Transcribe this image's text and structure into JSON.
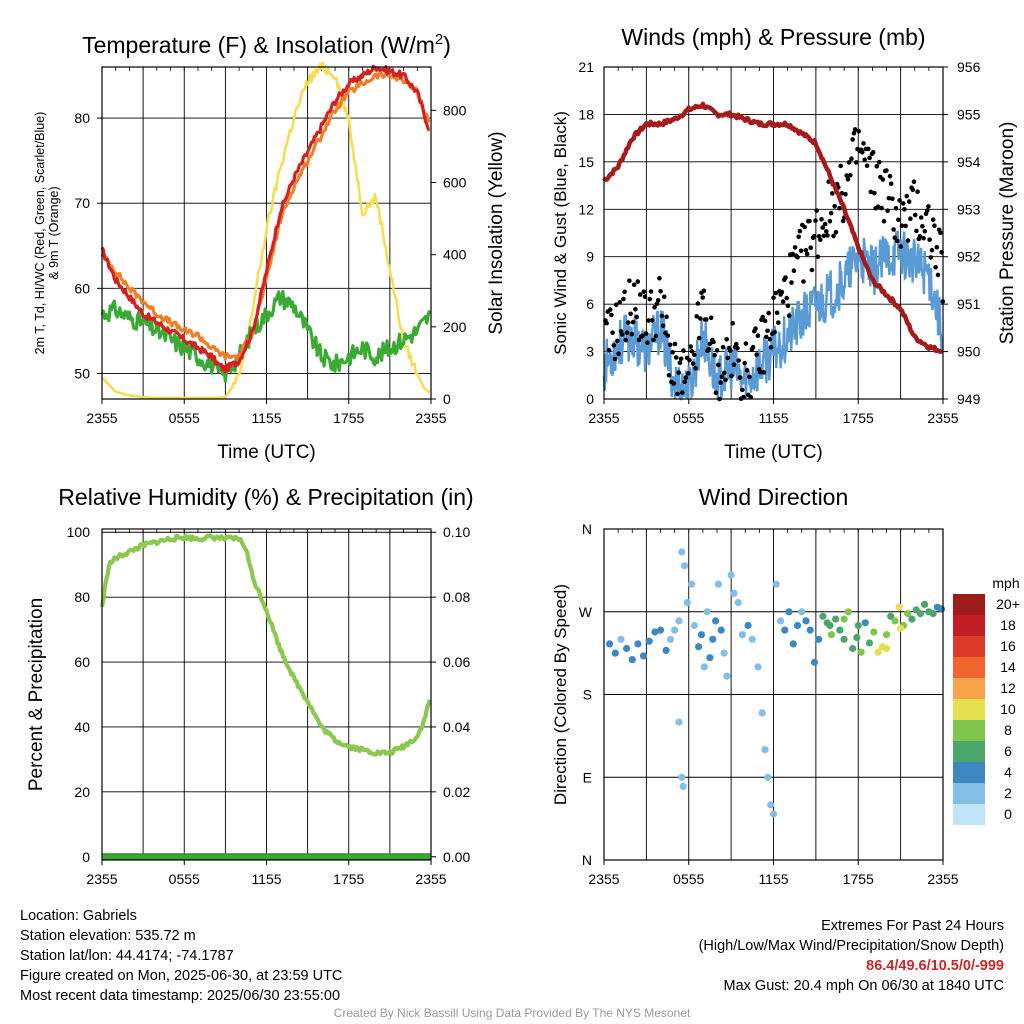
{
  "chart_data": [
    {
      "type": "line",
      "title": "Temperature (F) & Insolation (W/m²)",
      "xlabel": "Time (UTC)",
      "ylabel": "2m T, Td, HI/WC (Red, Green, Scarlet/Blue) & 9m T (Orange)",
      "y2label": "Solar Insolation (Yellow)",
      "x_ticks": [
        "2355",
        "0555",
        "1155",
        "1755",
        "2355"
      ],
      "xlim": [
        0,
        24
      ],
      "ylim": [
        47,
        86
      ],
      "y_ticks": [
        50,
        60,
        70,
        80
      ],
      "y2lim": [
        0,
        920
      ],
      "y2_ticks": [
        0,
        200,
        400,
        600,
        800
      ],
      "grid": true,
      "series": [
        {
          "axis": "left",
          "color": "#d42020",
          "x": [
            0,
            1,
            2,
            3,
            4,
            5,
            6,
            7,
            8,
            8.5,
            9,
            9.5,
            10,
            11,
            12,
            13,
            14,
            15,
            16,
            17,
            18,
            19,
            20,
            21,
            22,
            23,
            24
          ],
          "values": [
            64.5,
            61,
            59,
            57,
            56,
            55,
            54,
            53,
            52,
            51,
            50.5,
            51,
            51.5,
            55,
            62,
            69,
            73,
            76,
            79,
            82,
            84,
            85,
            86,
            85.5,
            85,
            83,
            78
          ]
        },
        {
          "axis": "left",
          "color": "#f07f2a",
          "x": [
            0,
            1,
            2,
            3,
            4,
            5,
            6,
            7,
            8,
            8.5,
            9,
            9.5,
            10,
            11,
            12,
            13,
            14,
            15,
            16,
            17,
            18,
            19,
            20,
            21,
            22,
            23,
            24
          ],
          "values": [
            64,
            62,
            60,
            58.5,
            57,
            56,
            55,
            54.5,
            53,
            52.5,
            52,
            52,
            52,
            55,
            61,
            68,
            72,
            75,
            78,
            81,
            83,
            84,
            85,
            85,
            84.5,
            83,
            79
          ]
        },
        {
          "axis": "left",
          "color": "#3aaa35",
          "x": [
            0,
            1,
            2,
            3,
            4,
            5,
            6,
            7,
            8,
            8.5,
            9,
            9.5,
            10,
            11,
            12,
            13,
            14,
            15,
            16,
            17,
            18,
            19,
            20,
            21,
            22,
            23,
            24
          ],
          "values": [
            57,
            57.5,
            56.5,
            56,
            55,
            54,
            53,
            52,
            51,
            50,
            50,
            51,
            52,
            55,
            57,
            59,
            58,
            55,
            52,
            51,
            52,
            53,
            52,
            53,
            54,
            55,
            57
          ]
        },
        {
          "axis": "right",
          "color": "#f5dc50",
          "x": [
            0,
            1,
            2,
            3,
            4,
            5,
            6,
            7,
            8,
            9,
            10,
            11,
            12,
            13,
            14,
            15,
            16,
            17,
            18,
            19,
            20,
            21,
            22,
            23,
            23.5,
            24
          ],
          "values": [
            60,
            20,
            10,
            5,
            3,
            3,
            3,
            3,
            3,
            5,
            60,
            250,
            470,
            640,
            780,
            880,
            920,
            900,
            770,
            520,
            560,
            360,
            160,
            70,
            30,
            15
          ]
        }
      ]
    },
    {
      "type": "scatter",
      "title": "Winds (mph) & Pressure (mb)",
      "xlabel": "Time (UTC)",
      "ylabel": "Sonic Wind & Gust (Blue, Black)",
      "y2label": "Station Pressure (Maroon)",
      "x_ticks": [
        "2355",
        "0555",
        "1155",
        "1755",
        "2355"
      ],
      "xlim": [
        0,
        24
      ],
      "ylim": [
        0,
        21
      ],
      "y_ticks": [
        0,
        3,
        6,
        9,
        12,
        15,
        18,
        21
      ],
      "y2lim": [
        949,
        956
      ],
      "y2_ticks": [
        949,
        950,
        951,
        952,
        953,
        954,
        955,
        956
      ],
      "grid": true,
      "series": [
        {
          "name": "wind",
          "color": "#5a9bd5",
          "x": [
            0,
            1,
            2,
            3,
            4,
            5,
            6,
            7,
            8,
            9,
            10,
            11,
            12,
            13,
            14,
            15,
            16,
            17,
            18,
            19,
            20,
            21,
            22,
            23,
            24
          ],
          "values": [
            2,
            3.5,
            4,
            3,
            4.5,
            1,
            0.5,
            4,
            1,
            2,
            1,
            2,
            3,
            4,
            5,
            6,
            6.5,
            7.5,
            9,
            8,
            9,
            9.5,
            8.5,
            8,
            4
          ]
        },
        {
          "name": "gust",
          "color": "#000000",
          "x": [
            0,
            1,
            2,
            3,
            4,
            5,
            6,
            7,
            8,
            9,
            10,
            11,
            12,
            13,
            14,
            15,
            16,
            17,
            18,
            19,
            20,
            21,
            22,
            23,
            24
          ],
          "values": [
            3.5,
            4.5,
            6,
            5,
            6,
            1.5,
            1,
            6,
            1.5,
            3,
            1.5,
            3,
            5,
            7,
            9,
            10.5,
            12,
            13,
            16,
            14,
            13,
            11,
            12,
            11,
            8
          ]
        },
        {
          "name": "pressure",
          "axis": "right",
          "color": "#a51a1a",
          "x": [
            0,
            1,
            2,
            3,
            4,
            5,
            6,
            7,
            8,
            9,
            10,
            11,
            12,
            13,
            14,
            15,
            16,
            17,
            18,
            19,
            20,
            21,
            22,
            23,
            24
          ],
          "values": [
            953.6,
            953.9,
            954.5,
            954.8,
            954.8,
            954.9,
            955.1,
            955.2,
            955.0,
            955.0,
            954.9,
            954.8,
            954.8,
            954.8,
            954.6,
            954.4,
            953.7,
            953.0,
            952.2,
            951.5,
            951.2,
            950.9,
            950.3,
            950.1,
            950.0
          ]
        }
      ]
    },
    {
      "type": "line",
      "title": "Relative Humidity (%) & Precipitation (in)",
      "xlabel": "",
      "ylabel": "Percent & Precipitation",
      "x_ticks": [
        "2355",
        "0555",
        "1155",
        "1755",
        "2355"
      ],
      "xlim": [
        0,
        24
      ],
      "ylim": [
        -1,
        101
      ],
      "y_ticks": [
        0,
        20,
        40,
        60,
        80,
        100
      ],
      "y2lim": [
        -0.001,
        0.101
      ],
      "y2_ticks": [
        "0.00",
        "0.02",
        "0.04",
        "0.06",
        "0.08",
        "0.10"
      ],
      "grid": true,
      "series": [
        {
          "color": "#8cc850",
          "x": [
            0,
            0.5,
            1,
            2,
            3,
            4,
            5,
            6,
            7,
            8,
            9,
            10,
            10.5,
            11,
            12,
            13,
            14,
            15,
            15.5,
            16,
            17,
            18,
            19,
            20,
            21,
            22,
            23,
            23.5,
            24
          ],
          "values": [
            77,
            90,
            92,
            94,
            96,
            97,
            98,
            98.5,
            98,
            98.5,
            98,
            98,
            95,
            86,
            76,
            64,
            55,
            48,
            44,
            40,
            36,
            34,
            33,
            32,
            32,
            34,
            37,
            42,
            50
          ]
        },
        {
          "color": "#3aaa35",
          "axis": "right",
          "x": [
            0,
            24
          ],
          "values": [
            0,
            0
          ]
        }
      ]
    },
    {
      "type": "scatter",
      "title": "Wind Direction",
      "xlabel": "",
      "ylabel": "Direction (Colored By Speed)",
      "x_ticks": [
        "2355",
        "0555",
        "1155",
        "1755",
        "2355"
      ],
      "xlim": [
        0,
        24
      ],
      "y_ticks": [
        "N",
        "E",
        "S",
        "W",
        "N"
      ],
      "ylim": [
        0,
        360
      ],
      "grid": true,
      "colorbar": {
        "title": "mph",
        "labels": [
          "20+",
          "18",
          "16",
          "14",
          "12",
          "10",
          "8",
          "6",
          "4",
          "2",
          "0"
        ],
        "colors": [
          "#9e1c1c",
          "#c01e24",
          "#de3a2b",
          "#f0642e",
          "#f8a24c",
          "#e6e050",
          "#7dc54b",
          "#4ca66a",
          "#3d88c0",
          "#84bde6",
          "#bfe3f8"
        ]
      },
      "points": [
        [
          0.4,
          235,
          3
        ],
        [
          0.8,
          225,
          3
        ],
        [
          1.2,
          240,
          2
        ],
        [
          1.6,
          230,
          4
        ],
        [
          2.0,
          218,
          4
        ],
        [
          2.4,
          235,
          3
        ],
        [
          2.8,
          222,
          4
        ],
        [
          3.2,
          238,
          4
        ],
        [
          3.6,
          248,
          3
        ],
        [
          4.0,
          250,
          3
        ],
        [
          4.4,
          228,
          4
        ],
        [
          4.7,
          240,
          2
        ],
        [
          5.0,
          250,
          1
        ],
        [
          5.3,
          260,
          2
        ],
        [
          5.5,
          335,
          1
        ],
        [
          5.7,
          320,
          2
        ],
        [
          5.9,
          280,
          1
        ],
        [
          5.3,
          150,
          1
        ],
        [
          5.5,
          90,
          1
        ],
        [
          5.6,
          80,
          1
        ],
        [
          6.2,
          300,
          1
        ],
        [
          6.4,
          255,
          2
        ],
        [
          6.7,
          232,
          3
        ],
        [
          6.9,
          245,
          3
        ],
        [
          7.1,
          210,
          2
        ],
        [
          7.3,
          270,
          2
        ],
        [
          7.5,
          220,
          3
        ],
        [
          7.7,
          240,
          3
        ],
        [
          7.9,
          260,
          3
        ],
        [
          8.1,
          300,
          2
        ],
        [
          8.3,
          250,
          3
        ],
        [
          8.5,
          225,
          2
        ],
        [
          8.7,
          200,
          2
        ],
        [
          9.0,
          310,
          1
        ],
        [
          9.2,
          290,
          2
        ],
        [
          9.5,
          280,
          1
        ],
        [
          9.8,
          245,
          2
        ],
        [
          10.2,
          255,
          3
        ],
        [
          10.5,
          240,
          2
        ],
        [
          10.9,
          210,
          2
        ],
        [
          11.2,
          160,
          1
        ],
        [
          11.4,
          120,
          1
        ],
        [
          11.6,
          90,
          1
        ],
        [
          11.8,
          60,
          1
        ],
        [
          12.0,
          50,
          2
        ],
        [
          12.2,
          300,
          1
        ],
        [
          12.5,
          260,
          2
        ],
        [
          12.8,
          250,
          3
        ],
        [
          13.1,
          270,
          3
        ],
        [
          13.4,
          235,
          3
        ],
        [
          13.7,
          255,
          4
        ],
        [
          14.0,
          270,
          2
        ],
        [
          14.3,
          260,
          3
        ],
        [
          14.6,
          250,
          4
        ],
        [
          14.9,
          215,
          3
        ],
        [
          15.2,
          240,
          4
        ],
        [
          15.5,
          265,
          5
        ],
        [
          15.8,
          258,
          6
        ],
        [
          16.1,
          245,
          7
        ],
        [
          16.4,
          262,
          6
        ],
        [
          16.7,
          250,
          5
        ],
        [
          17.0,
          240,
          6
        ],
        [
          17.3,
          270,
          7
        ],
        [
          17.6,
          230,
          5
        ],
        [
          17.9,
          242,
          6
        ],
        [
          18.2,
          226,
          7
        ],
        [
          18.5,
          258,
          4
        ],
        [
          18.8,
          236,
          5
        ],
        [
          19.1,
          248,
          8
        ],
        [
          19.4,
          226,
          10
        ],
        [
          19.7,
          232,
          9
        ],
        [
          20.0,
          245,
          7
        ],
        [
          20.3,
          265,
          6
        ],
        [
          20.6,
          260,
          8
        ],
        [
          20.9,
          275,
          9
        ],
        [
          21.2,
          255,
          8
        ],
        [
          21.5,
          268,
          7
        ],
        [
          21.8,
          262,
          6
        ],
        [
          22.1,
          272,
          5
        ],
        [
          22.4,
          268,
          5
        ],
        [
          22.7,
          278,
          6
        ],
        [
          23.0,
          270,
          6
        ],
        [
          23.3,
          268,
          5
        ],
        [
          23.6,
          275,
          4
        ],
        [
          23.9,
          273,
          4
        ],
        [
          16.0,
          255,
          5
        ],
        [
          17.0,
          262,
          7
        ],
        [
          18.0,
          255,
          6
        ],
        [
          20.0,
          230,
          10
        ],
        [
          21.0,
          252,
          9
        ]
      ]
    }
  ],
  "footer": {
    "location": "Location: Gabriels",
    "elevation": "Station elevation: 535.72 m",
    "latlon": "Station lat/lon: 44.4174; -74.1787",
    "created": "Figure created on Mon, 2025-06-30, at 23:59 UTC",
    "recent": "Most recent data timestamp: 2025/06/30 23:55:00",
    "extremes_title": "Extremes For Past 24 Hours",
    "extremes_sub": "(High/Low/Max Wind/Precipitation/Snow Depth)",
    "extremes_values": "86.4/49.6/10.5/0/-999",
    "max_gust": "Max Gust: 20.4 mph On 06/30 at 1840 UTC",
    "credit": "Created By Nick Bassill Using Data Provided By The NYS Mesonet"
  }
}
